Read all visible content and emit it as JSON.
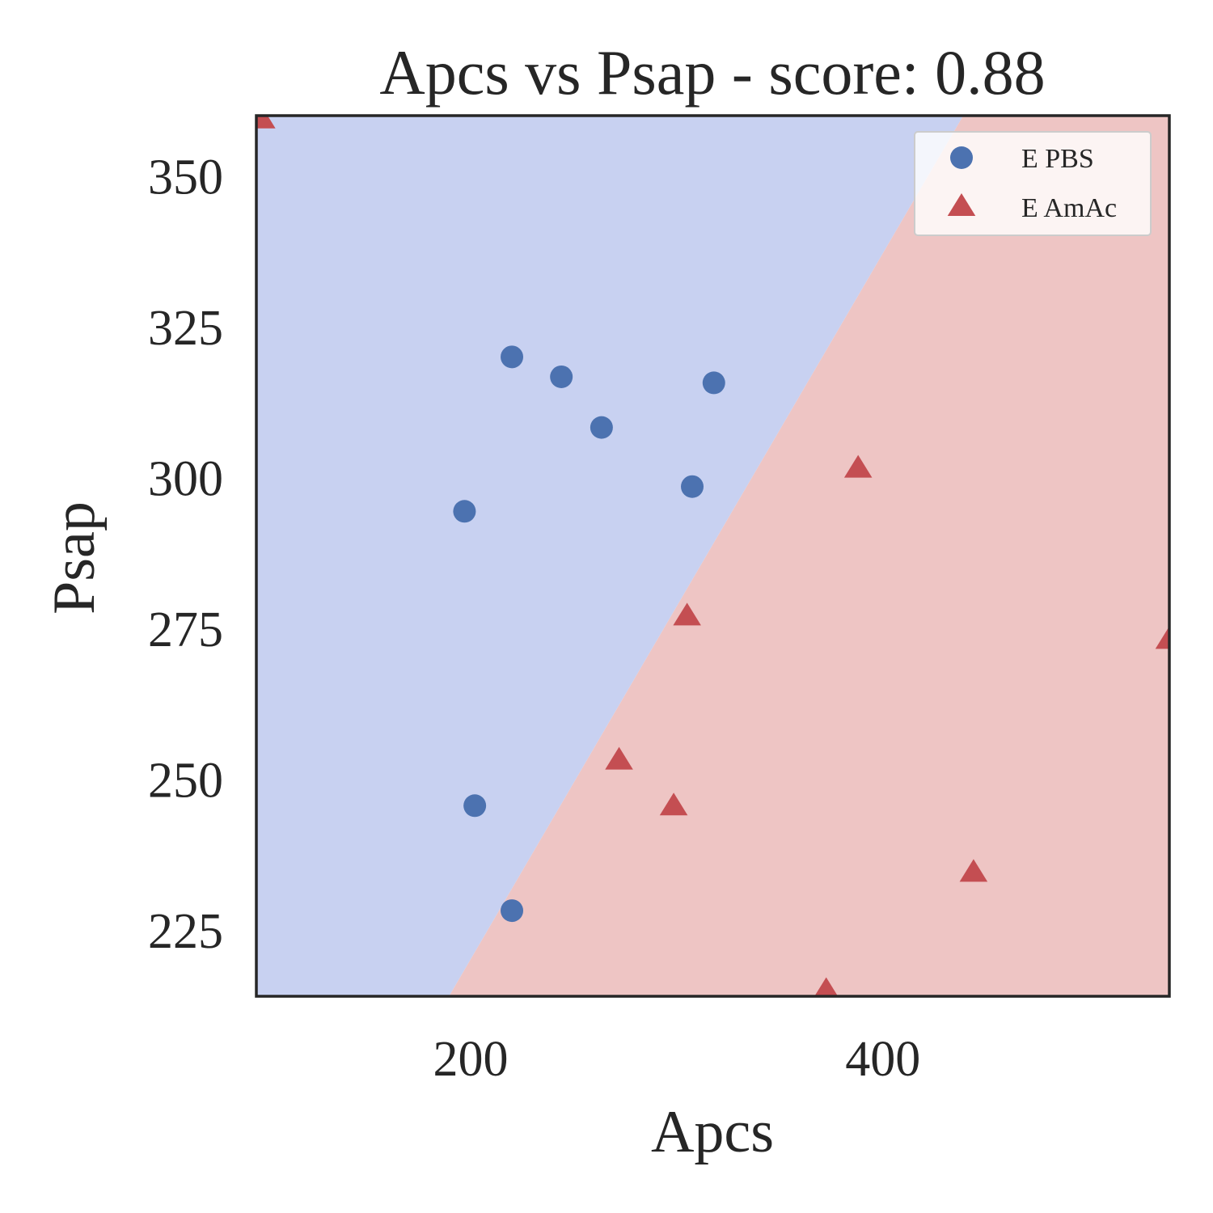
{
  "chart_data": {
    "type": "scatter",
    "title": "Apcs vs Psap - score: 0.88",
    "xlabel": "Apcs",
    "ylabel": "Psap",
    "xlim": [
      96,
      539
    ],
    "ylim": [
      214,
      360
    ],
    "xticks": [
      200,
      400
    ],
    "yticks": [
      225,
      250,
      275,
      300,
      325,
      350
    ],
    "xtick_labels": [
      "200",
      "400"
    ],
    "ytick_labels": [
      "225",
      "250",
      "275",
      "300",
      "325",
      "350"
    ],
    "grid": false,
    "legend_position": "top-right",
    "decision_boundary": {
      "points": [
        [
          189.5,
          214
        ],
        [
          439,
          360
        ]
      ],
      "regions": [
        {
          "class": "E PBS",
          "side": "upper-left",
          "color": "#c8d1f1"
        },
        {
          "class": "E AmAc",
          "side": "lower-right",
          "color": "#eec5c4"
        }
      ]
    },
    "series": [
      {
        "name": "E PBS",
        "marker": "circle",
        "color": "#4c72b0",
        "points": [
          [
            220,
            320
          ],
          [
            244,
            316.7
          ],
          [
            263.5,
            308.3
          ],
          [
            318,
            315.7
          ],
          [
            197,
            294.4
          ],
          [
            307.5,
            298.5
          ],
          [
            202,
            245.6
          ],
          [
            220,
            228.2
          ]
        ]
      },
      {
        "name": "E AmAc",
        "marker": "triangle",
        "color": "#c44e52",
        "points": [
          [
            98.5,
            359.5
          ],
          [
            388,
            301.6
          ],
          [
            305,
            277.1
          ],
          [
            272,
            253.2
          ],
          [
            298.5,
            245.6
          ],
          [
            444,
            234.6
          ],
          [
            372.5,
            215
          ],
          [
            539,
            273.2
          ]
        ]
      }
    ]
  }
}
